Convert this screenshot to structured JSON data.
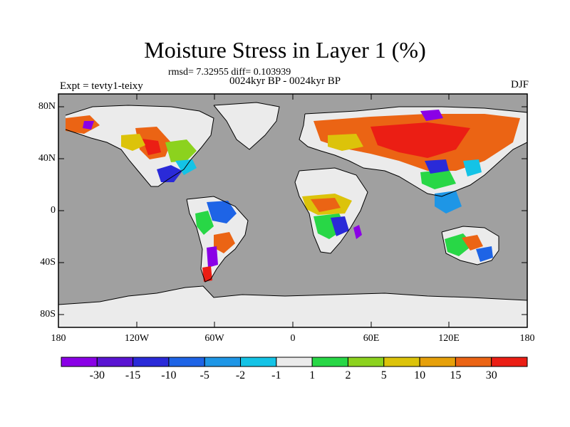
{
  "title": "Moisture Stress in Layer 1 (%)",
  "stats": "rmsd= 7.32955 diff= 0.103939",
  "period": "0024kyr BP - 0024kyr BP",
  "experiment": "Expt = tevty1-teixy",
  "season": "DJF",
  "lat_ticks": [
    "80N",
    "40N",
    "0",
    "40S",
    "80S"
  ],
  "lon_ticks": [
    "180",
    "120W",
    "60W",
    "0",
    "60E",
    "120E",
    "180"
  ],
  "colorbar": {
    "colors": [
      "#8a00e6",
      "#5a14d2",
      "#2a2ad8",
      "#1e64e6",
      "#1e96e6",
      "#14c3e6",
      "#ebebeb",
      "#28d746",
      "#8cd21e",
      "#dcc30a",
      "#e6a00a",
      "#eb6414",
      "#eb1e14"
    ],
    "labels": [
      "-30",
      "-15",
      "-10",
      "-5",
      "-2",
      "-1",
      "1",
      "2",
      "5",
      "10",
      "15",
      "30"
    ]
  },
  "colors": {
    "ocean": "#a0a0a0",
    "no_change_land": "#ebebeb",
    "coast": "#000000"
  }
}
